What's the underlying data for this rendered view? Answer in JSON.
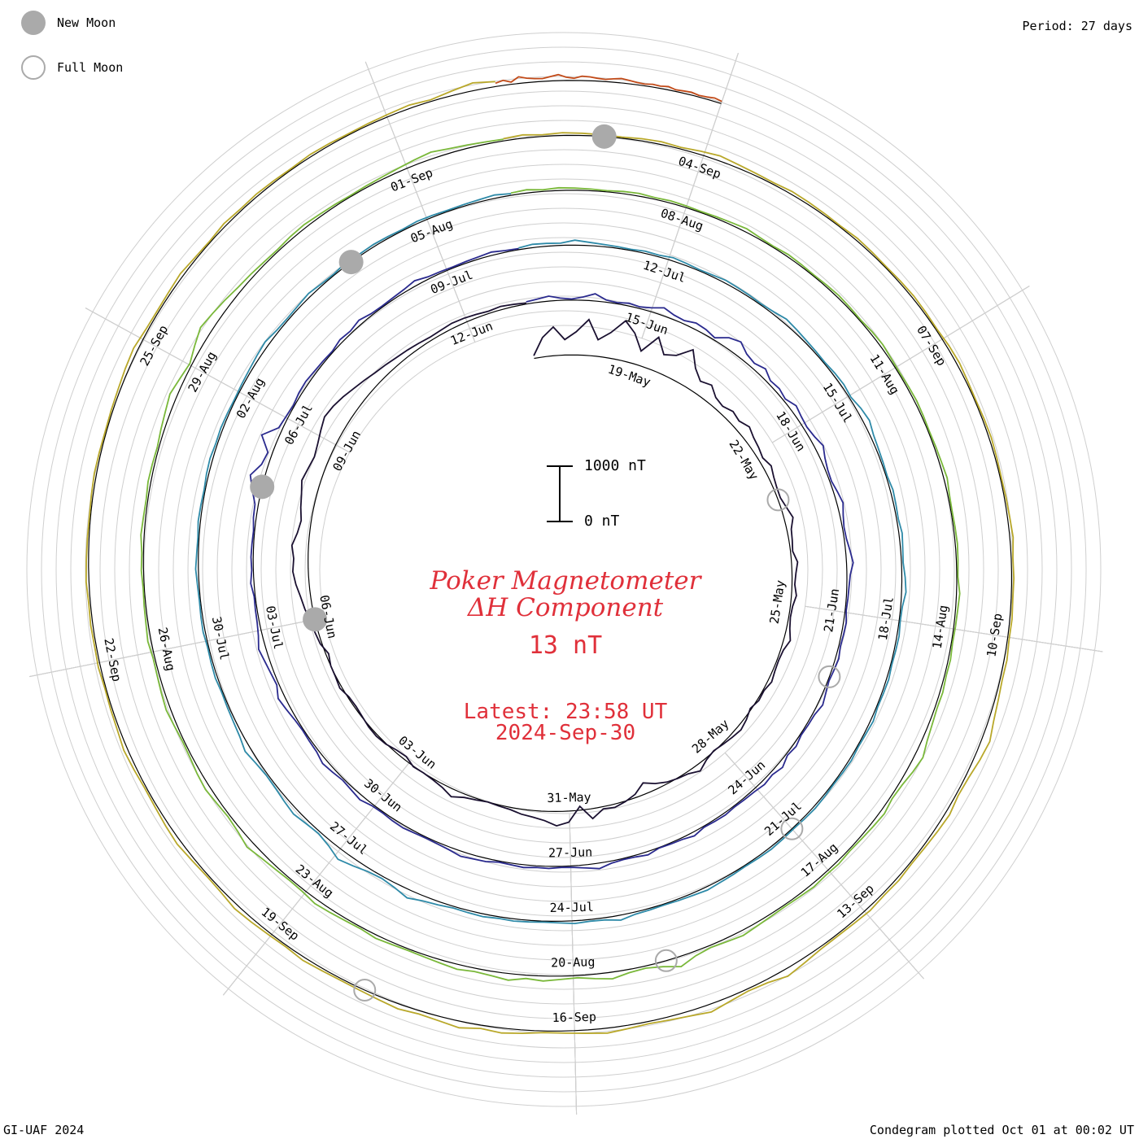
{
  "legend": {
    "new_moon_label": "New Moon",
    "full_moon_label": "Full Moon",
    "new_moon_color": "#aaaaaa",
    "full_moon_color": "#aaaaaa"
  },
  "period_label": "Period: 27 days",
  "footer_left": "GI-UAF 2024",
  "footer_right": "Condegram plotted Oct 01 at 00:02 UT",
  "center": {
    "title": "Poker Magnetometer",
    "subtitle": "ΔH Component",
    "current_value": "13 nT",
    "latest": "Latest: 23:58 UT",
    "date": "2024-Sep-30",
    "text_color": "#e0303a"
  },
  "scale_bar": {
    "top_label": "1000 nT",
    "bottom_label": "0 nT"
  },
  "chart_data": {
    "type": "line",
    "style": "condegram spiral",
    "period_days": 27,
    "start_date": "2024-05-17",
    "end_date": "2024-09-30",
    "date_labels": [
      {
        "date": "2024-05-19",
        "label": "19-May"
      },
      {
        "date": "2024-05-22",
        "label": "22-May"
      },
      {
        "date": "2024-05-25",
        "label": "25-May"
      },
      {
        "date": "2024-05-28",
        "label": "28-May"
      },
      {
        "date": "2024-05-31",
        "label": "31-May"
      },
      {
        "date": "2024-06-03",
        "label": "03-Jun"
      },
      {
        "date": "2024-06-06",
        "label": "06-Jun"
      },
      {
        "date": "2024-06-09",
        "label": "09-Jun"
      },
      {
        "date": "2024-06-12",
        "label": "12-Jun"
      },
      {
        "date": "2024-06-15",
        "label": "15-Jun"
      },
      {
        "date": "2024-06-18",
        "label": "18-Jun"
      },
      {
        "date": "2024-06-21",
        "label": "21-Jun"
      },
      {
        "date": "2024-06-24",
        "label": "24-Jun"
      },
      {
        "date": "2024-06-27",
        "label": "27-Jun"
      },
      {
        "date": "2024-06-30",
        "label": "30-Jun"
      },
      {
        "date": "2024-07-03",
        "label": "03-Jul"
      },
      {
        "date": "2024-07-06",
        "label": "06-Jul"
      },
      {
        "date": "2024-07-09",
        "label": "09-Jul"
      },
      {
        "date": "2024-07-12",
        "label": "12-Jul"
      },
      {
        "date": "2024-07-15",
        "label": "15-Jul"
      },
      {
        "date": "2024-07-18",
        "label": "18-Jul"
      },
      {
        "date": "2024-07-21",
        "label": "21-Jul"
      },
      {
        "date": "2024-07-24",
        "label": "24-Jul"
      },
      {
        "date": "2024-07-27",
        "label": "27-Jul"
      },
      {
        "date": "2024-07-30",
        "label": "30-Jul"
      },
      {
        "date": "2024-08-02",
        "label": "02-Aug"
      },
      {
        "date": "2024-08-05",
        "label": "05-Aug"
      },
      {
        "date": "2024-08-08",
        "label": "08-Aug"
      },
      {
        "date": "2024-08-11",
        "label": "11-Aug"
      },
      {
        "date": "2024-08-14",
        "label": "14-Aug"
      },
      {
        "date": "2024-08-17",
        "label": "17-Aug"
      },
      {
        "date": "2024-08-20",
        "label": "20-Aug"
      },
      {
        "date": "2024-08-23",
        "label": "23-Aug"
      },
      {
        "date": "2024-08-26",
        "label": "26-Aug"
      },
      {
        "date": "2024-08-29",
        "label": "29-Aug"
      },
      {
        "date": "2024-09-01",
        "label": "01-Sep"
      },
      {
        "date": "2024-09-04",
        "label": "04-Sep"
      },
      {
        "date": "2024-09-07",
        "label": "07-Sep"
      },
      {
        "date": "2024-09-10",
        "label": "10-Sep"
      },
      {
        "date": "2024-09-13",
        "label": "13-Sep"
      },
      {
        "date": "2024-09-16",
        "label": "16-Sep"
      },
      {
        "date": "2024-09-19",
        "label": "19-Sep"
      },
      {
        "date": "2024-09-22",
        "label": "22-Sep"
      },
      {
        "date": "2024-09-25",
        "label": "25-Sep"
      }
    ],
    "moon_phases": [
      {
        "date": "2024-05-23",
        "phase": "full"
      },
      {
        "date": "2024-06-06",
        "phase": "new"
      },
      {
        "date": "2024-06-22",
        "phase": "full"
      },
      {
        "date": "2024-07-05",
        "phase": "new"
      },
      {
        "date": "2024-07-21",
        "phase": "full"
      },
      {
        "date": "2024-08-04",
        "phase": "new"
      },
      {
        "date": "2024-08-19",
        "phase": "full"
      },
      {
        "date": "2024-09-03",
        "phase": "new"
      },
      {
        "date": "2024-09-18",
        "phase": "full"
      }
    ],
    "units": "nT",
    "series": [
      {
        "start_date": "2024-05-17",
        "color": "#1a1030",
        "values": [
          50,
          350,
          520,
          280,
          420,
          650,
          300,
          460,
          720,
          540,
          260,
          600,
          340,
          420,
          650,
          380,
          230,
          290,
          160,
          120,
          180,
          140,
          210,
          150,
          120,
          80,
          140,
          90,
          60,
          50,
          100,
          160,
          80,
          60,
          40,
          110,
          70,
          50,
          90,
          40,
          30,
          60,
          120,
          50,
          30,
          40,
          70,
          20,
          30,
          -20,
          40,
          80,
          50,
          20,
          -10,
          30,
          120,
          40,
          10,
          -30,
          -100,
          -200,
          -60,
          10,
          60,
          40,
          180,
          -70,
          200,
          260,
          170,
          120,
          90,
          40,
          20,
          0,
          30,
          60,
          140,
          60,
          20,
          0,
          10,
          -60,
          -40,
          10,
          30,
          20,
          -10,
          -30,
          -20,
          40,
          10,
          0,
          -50,
          30,
          60,
          90,
          140,
          180,
          240,
          280,
          260,
          300,
          220,
          180,
          230,
          270,
          330,
          290,
          260,
          300,
          360,
          420,
          390,
          340,
          280,
          230,
          180,
          150,
          120,
          100,
          80,
          60,
          70,
          90,
          80,
          60,
          40,
          60,
          40,
          20
        ]
      },
      {
        "start_date": "2024-06-13",
        "color": "#2a2a8e",
        "values": [
          40,
          60,
          90,
          40,
          20,
          60,
          130,
          40,
          20,
          50,
          30,
          70,
          140,
          80,
          60,
          110,
          90,
          40,
          180,
          240,
          130,
          90,
          150,
          60,
          80,
          40,
          120,
          80,
          60,
          90,
          150,
          80,
          40,
          30,
          70,
          110,
          60,
          30,
          40,
          80,
          120,
          60,
          40,
          30,
          20,
          50,
          40,
          30,
          60,
          40,
          20,
          50,
          90,
          40,
          30,
          20,
          60,
          30,
          100,
          50,
          70,
          40,
          30,
          20,
          40,
          30,
          20,
          70,
          30,
          20,
          10,
          60,
          30,
          20,
          40,
          100,
          60,
          30,
          20,
          40,
          30,
          50,
          30,
          20,
          60,
          70,
          90,
          50,
          30,
          20,
          30,
          50,
          40,
          20,
          30,
          80,
          50,
          30,
          60,
          90,
          40,
          30,
          20,
          40,
          80,
          120,
          40,
          60,
          90,
          130,
          70,
          40,
          30,
          20,
          60,
          30,
          40,
          30,
          20,
          50,
          60,
          160,
          260,
          120,
          80,
          300,
          70,
          40,
          20,
          50,
          60,
          40,
          30,
          20,
          60,
          40,
          80,
          30,
          20,
          30,
          50,
          90,
          40,
          30,
          20,
          30,
          40,
          60,
          30,
          20
        ]
      },
      {
        "start_date": "2024-07-10",
        "color": "#2e8aa8",
        "values": [
          30,
          60,
          50,
          40,
          90,
          60,
          40,
          30,
          20,
          40,
          30,
          60,
          40,
          20,
          30,
          50,
          40,
          30,
          20,
          40,
          80,
          60,
          40,
          30,
          20,
          40,
          50,
          30,
          80,
          110,
          60,
          40,
          30,
          20,
          50,
          40,
          30,
          60,
          40,
          30,
          60,
          80,
          30,
          20,
          40,
          30,
          20,
          40,
          30,
          20,
          50,
          30,
          20,
          40,
          30,
          20,
          30,
          40,
          30,
          20,
          30,
          40,
          30,
          20,
          30,
          40,
          60,
          40,
          30,
          20,
          30,
          40,
          90,
          40,
          30,
          50,
          30,
          20,
          30,
          40,
          30,
          50,
          40,
          30,
          60,
          90,
          150,
          80,
          40,
          60,
          120,
          180,
          90,
          40,
          60,
          100,
          70,
          40,
          30,
          60,
          110,
          60,
          40,
          30,
          20,
          40,
          30,
          20,
          40,
          30,
          20,
          30,
          50,
          30,
          20,
          40,
          30,
          20,
          40,
          50,
          30,
          40,
          30,
          20,
          30,
          40,
          60,
          80,
          40,
          30,
          40,
          60,
          30,
          20,
          50,
          30,
          40,
          30,
          20,
          40,
          30,
          20,
          30,
          40,
          60,
          30
        ]
      },
      {
        "start_date": "2024-08-06",
        "color": "#7ab83a",
        "values": [
          40,
          60,
          30,
          50,
          40,
          30,
          20,
          40,
          50,
          30,
          40,
          30,
          20,
          30,
          40,
          60,
          30,
          20,
          40,
          30,
          20,
          30,
          40,
          30,
          20,
          40,
          50,
          30,
          20,
          30,
          40,
          30,
          20,
          30,
          40,
          60,
          30,
          20,
          30,
          40,
          30,
          20,
          60,
          40,
          30,
          20,
          40,
          30,
          50,
          40,
          60,
          90,
          150,
          110,
          60,
          40,
          80,
          60,
          40,
          30,
          50,
          40,
          60,
          40,
          30,
          40,
          60,
          90,
          60,
          40,
          80,
          180,
          90,
          40,
          60,
          120,
          80,
          40,
          60,
          90,
          60,
          120,
          80,
          60,
          90,
          60,
          40,
          30,
          40,
          60,
          30,
          40,
          60,
          80,
          40,
          30,
          50,
          80,
          130,
          70,
          40,
          60,
          90,
          70,
          40,
          30,
          50,
          80,
          60,
          40,
          30,
          60,
          40,
          30,
          20,
          40,
          30,
          60,
          40,
          30,
          50,
          40,
          30,
          60,
          90,
          130,
          80,
          40,
          120,
          200,
          160,
          120,
          80,
          60,
          40,
          30,
          50,
          60,
          40,
          30,
          20,
          30,
          40,
          60,
          90,
          120,
          80,
          60,
          40,
          30
        ]
      },
      {
        "start_date": "2024-09-02",
        "color": "#b9a82a",
        "values": [
          40,
          60,
          30,
          50,
          40,
          30,
          20,
          40,
          50,
          30,
          60,
          90,
          60,
          40,
          30,
          50,
          40,
          30,
          20,
          40,
          30,
          20,
          30,
          40,
          30,
          20,
          40,
          50,
          30,
          20,
          30,
          40,
          30,
          20,
          30,
          40,
          60,
          30,
          40,
          30,
          40,
          30,
          50,
          40,
          60,
          90,
          150,
          110,
          60,
          40,
          80,
          60,
          40,
          30,
          50,
          40,
          60,
          40,
          30,
          40,
          80,
          130,
          60,
          40,
          80,
          140,
          90,
          60,
          40,
          60,
          90,
          60,
          40,
          30,
          60,
          90,
          60,
          120,
          80,
          60,
          90,
          60,
          40,
          30,
          40,
          60,
          30,
          40,
          60,
          80,
          40,
          30,
          50,
          80,
          60,
          40,
          30,
          50,
          70,
          40,
          30,
          20,
          40,
          30,
          40,
          30,
          50,
          40,
          30,
          20,
          30,
          40,
          30,
          20,
          30,
          40,
          60,
          80,
          40,
          30,
          40,
          60,
          30,
          20,
          50,
          30,
          40,
          30,
          20,
          40,
          30,
          20,
          30,
          40,
          60,
          30,
          80,
          140,
          90
        ]
      },
      {
        "start_date": "2024-09-29",
        "color": "#c24a18",
        "values": [
          60,
          90,
          40,
          120,
          80,
          60,
          50,
          80,
          110,
          60,
          40,
          80,
          70,
          50,
          40,
          60,
          80,
          60,
          40,
          30,
          50,
          40,
          60,
          30,
          40,
          50,
          30,
          40,
          60,
          40
        ]
      }
    ]
  }
}
